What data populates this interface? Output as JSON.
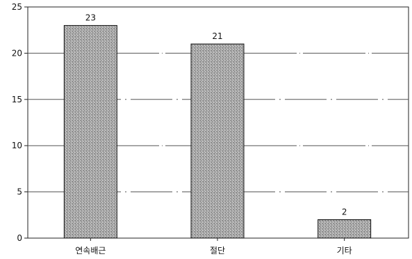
{
  "chart_data": {
    "type": "bar",
    "categories": [
      "연속배근",
      "절단",
      "기타"
    ],
    "values": [
      23,
      21,
      2
    ],
    "data_labels": [
      "23",
      "21",
      "2"
    ],
    "ylim": [
      0,
      25
    ],
    "yticks": [
      0,
      5,
      10,
      15,
      20,
      25
    ],
    "ytick_labels": [
      "0",
      "5",
      "10",
      "15",
      "20",
      "25"
    ],
    "grid": true,
    "legend": "none",
    "bar_color": "#a8a8a8",
    "title": "",
    "xlabel": "",
    "ylabel": ""
  }
}
